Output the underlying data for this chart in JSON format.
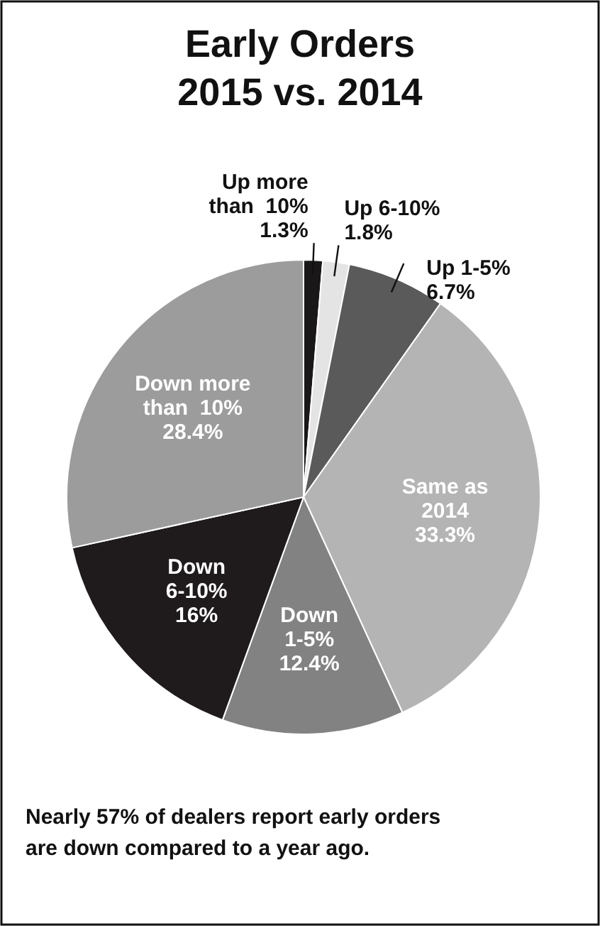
{
  "chart_data": {
    "type": "pie",
    "title": "Early Orders\n2015 vs. 2014",
    "categories": [
      "Up more\nthan  10%",
      "Up 6-10%",
      "Up 1-5%",
      "Same as\n2014",
      "Down\n1-5%",
      "Down\n6-10%",
      "Down more\nthan  10%"
    ],
    "values": [
      1.3,
      1.8,
      6.7,
      33.3,
      12.4,
      16,
      28.4
    ],
    "value_labels": [
      "1.3%",
      "1.8%",
      "6.7%",
      "33.3%",
      "12.4%",
      "16%",
      "28.4%"
    ],
    "colors": [
      "#1a1718",
      "#e4e4e4",
      "#5a5a5a",
      "#b4b4b4",
      "#828282",
      "#1f1b1c",
      "#9c9c9c"
    ],
    "annotations": [
      "Nearly 57% of dealers report early orders are down compared to a year ago."
    ]
  }
}
